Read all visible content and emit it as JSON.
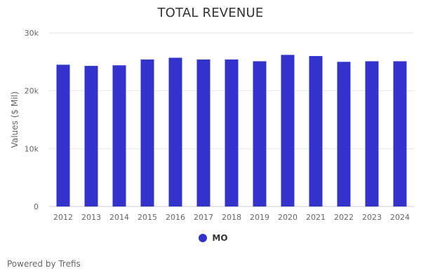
{
  "chart_data": {
    "type": "bar",
    "title": "TOTAL REVENUE",
    "xlabel": "",
    "ylabel": "Values ($ Mil)",
    "ylim": [
      0,
      30000
    ],
    "y_ticks": [
      {
        "value": 0,
        "label": "0"
      },
      {
        "value": 10000,
        "label": "10k"
      },
      {
        "value": 20000,
        "label": "20k"
      },
      {
        "value": 30000,
        "label": "30k"
      }
    ],
    "grid": true,
    "legend_position": "bottom-center",
    "categories": [
      "2012",
      "2013",
      "2014",
      "2015",
      "2016",
      "2017",
      "2018",
      "2019",
      "2020",
      "2021",
      "2022",
      "2023",
      "2024"
    ],
    "series": [
      {
        "name": "MO",
        "color": "#3333cc",
        "values": [
          24500,
          24300,
          24400,
          25400,
          25700,
          25400,
          25400,
          25100,
          26200,
          26000,
          25000,
          25100,
          25100
        ]
      }
    ]
  },
  "footer": {
    "credits": "Powered by Trefis"
  },
  "colors": {
    "bar": "#3333cc",
    "grid": "#e6e6e6",
    "text": "#333333",
    "muted_text": "#666666"
  }
}
